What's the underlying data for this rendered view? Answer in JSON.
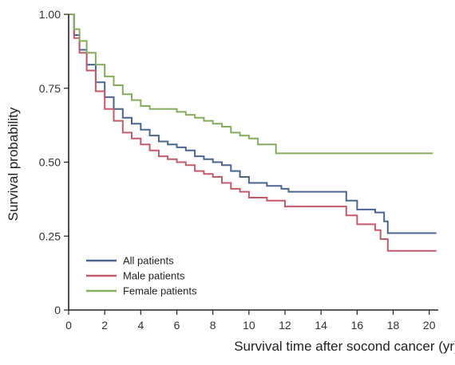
{
  "chart_data": {
    "type": "line",
    "title": "",
    "xlabel": "Survival time after socond cancer (yr)",
    "ylabel": "Survival probability",
    "xlim": [
      0,
      20.5
    ],
    "ylim": [
      0,
      1.0
    ],
    "xticks": [
      "0",
      "2",
      "4",
      "6",
      "8",
      "10",
      "12",
      "14",
      "16",
      "18",
      "20"
    ],
    "yticks": [
      "0",
      "0.25",
      "0.50",
      "0.75",
      "1.00"
    ],
    "grid": false,
    "legend_position": "bottom-left",
    "series": [
      {
        "name": "All patients",
        "color": "#4a6592",
        "points": [
          [
            0,
            1.0
          ],
          [
            0.3,
            0.93
          ],
          [
            0.6,
            0.88
          ],
          [
            1.0,
            0.83
          ],
          [
            1.5,
            0.77
          ],
          [
            2.0,
            0.72
          ],
          [
            2.5,
            0.68
          ],
          [
            3.0,
            0.65
          ],
          [
            3.5,
            0.63
          ],
          [
            4.0,
            0.61
          ],
          [
            4.5,
            0.59
          ],
          [
            5.0,
            0.57
          ],
          [
            5.5,
            0.56
          ],
          [
            6.0,
            0.55
          ],
          [
            6.5,
            0.54
          ],
          [
            7.0,
            0.52
          ],
          [
            7.5,
            0.51
          ],
          [
            8.0,
            0.5
          ],
          [
            8.5,
            0.49
          ],
          [
            9.0,
            0.47
          ],
          [
            9.5,
            0.45
          ],
          [
            10.0,
            0.43
          ],
          [
            11.0,
            0.42
          ],
          [
            11.8,
            0.41
          ],
          [
            12.2,
            0.4
          ],
          [
            13.0,
            0.4
          ],
          [
            14.0,
            0.4
          ],
          [
            15.0,
            0.4
          ],
          [
            15.4,
            0.37
          ],
          [
            16.0,
            0.34
          ],
          [
            17.0,
            0.33
          ],
          [
            17.5,
            0.3
          ],
          [
            17.7,
            0.26
          ],
          [
            20.4,
            0.26
          ]
        ]
      },
      {
        "name": "Male patients",
        "color": "#c55a6a",
        "points": [
          [
            0,
            1.0
          ],
          [
            0.3,
            0.92
          ],
          [
            0.6,
            0.87
          ],
          [
            1.0,
            0.81
          ],
          [
            1.5,
            0.74
          ],
          [
            2.0,
            0.68
          ],
          [
            2.5,
            0.64
          ],
          [
            3.0,
            0.6
          ],
          [
            3.5,
            0.58
          ],
          [
            4.0,
            0.56
          ],
          [
            4.5,
            0.54
          ],
          [
            5.0,
            0.52
          ],
          [
            5.5,
            0.51
          ],
          [
            6.0,
            0.5
          ],
          [
            6.5,
            0.49
          ],
          [
            7.0,
            0.47
          ],
          [
            7.5,
            0.46
          ],
          [
            8.0,
            0.45
          ],
          [
            8.5,
            0.43
          ],
          [
            9.0,
            0.41
          ],
          [
            9.5,
            0.4
          ],
          [
            10.0,
            0.38
          ],
          [
            11.0,
            0.37
          ],
          [
            12.0,
            0.35
          ],
          [
            13.0,
            0.35
          ],
          [
            14.0,
            0.35
          ],
          [
            15.0,
            0.35
          ],
          [
            15.4,
            0.32
          ],
          [
            16.0,
            0.29
          ],
          [
            17.0,
            0.27
          ],
          [
            17.3,
            0.24
          ],
          [
            17.7,
            0.2
          ],
          [
            20.4,
            0.2
          ]
        ]
      },
      {
        "name": "Female patients",
        "color": "#86ad5e",
        "points": [
          [
            0,
            1.0
          ],
          [
            0.3,
            0.95
          ],
          [
            0.6,
            0.91
          ],
          [
            1.0,
            0.87
          ],
          [
            1.5,
            0.83
          ],
          [
            2.0,
            0.79
          ],
          [
            2.5,
            0.76
          ],
          [
            3.0,
            0.73
          ],
          [
            3.5,
            0.71
          ],
          [
            4.0,
            0.69
          ],
          [
            4.5,
            0.68
          ],
          [
            5.0,
            0.68
          ],
          [
            5.5,
            0.68
          ],
          [
            6.0,
            0.67
          ],
          [
            6.5,
            0.66
          ],
          [
            7.0,
            0.65
          ],
          [
            7.5,
            0.64
          ],
          [
            8.0,
            0.63
          ],
          [
            8.5,
            0.62
          ],
          [
            9.0,
            0.6
          ],
          [
            9.5,
            0.59
          ],
          [
            10.0,
            0.58
          ],
          [
            10.5,
            0.56
          ],
          [
            11.0,
            0.56
          ],
          [
            11.5,
            0.53
          ],
          [
            12.0,
            0.53
          ],
          [
            14.0,
            0.53
          ],
          [
            16.0,
            0.53
          ],
          [
            18.0,
            0.53
          ],
          [
            20.0,
            0.53
          ],
          [
            20.2,
            0.53
          ]
        ]
      }
    ]
  }
}
